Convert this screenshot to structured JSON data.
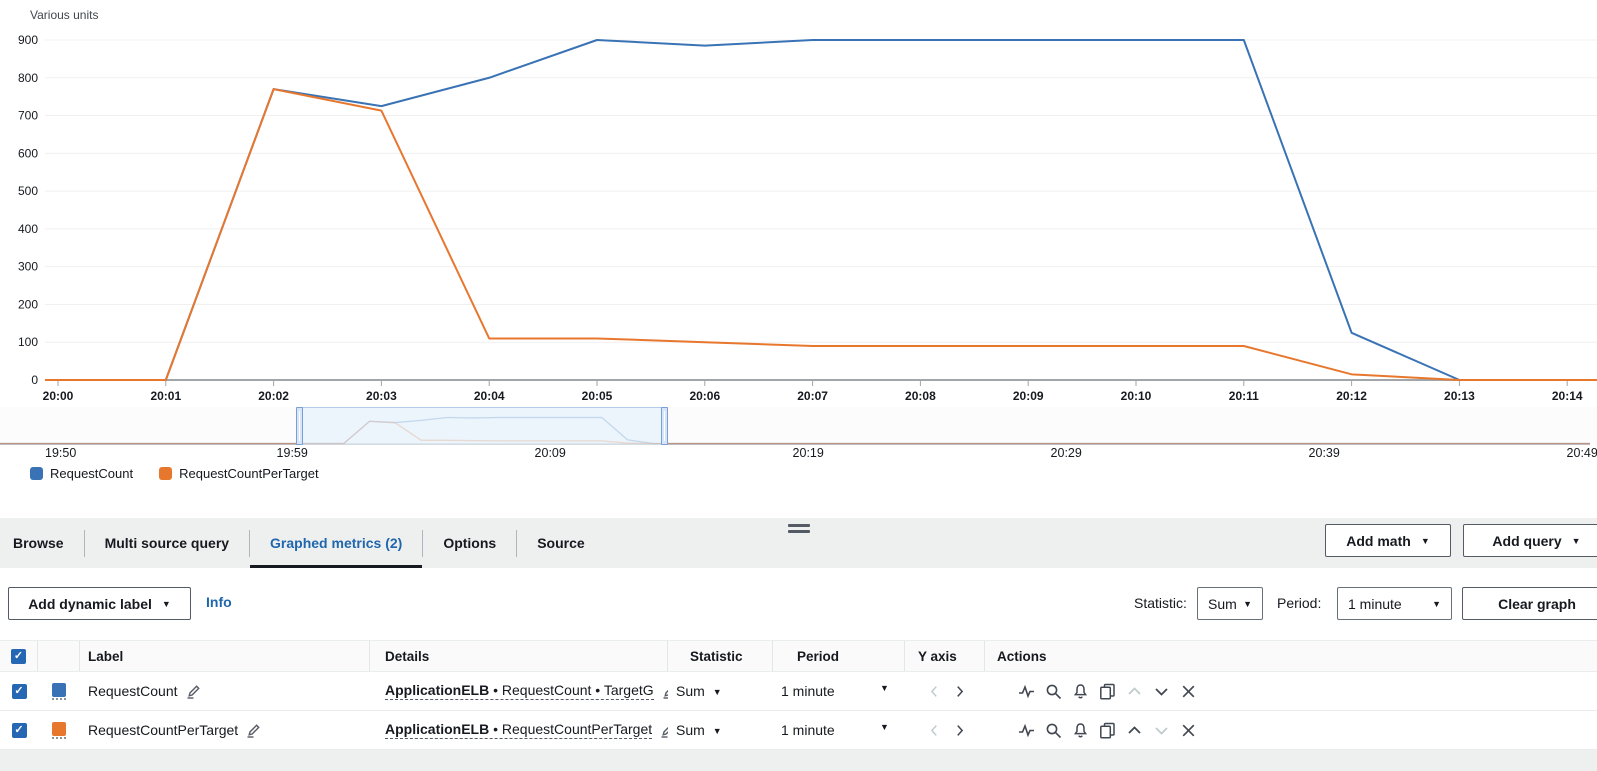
{
  "chart_data": {
    "type": "line",
    "y_axis_title": "Various units",
    "x": [
      "20:00",
      "20:01",
      "20:02",
      "20:03",
      "20:04",
      "20:05",
      "20:06",
      "20:07",
      "20:08",
      "20:09",
      "20:10",
      "20:11",
      "20:12",
      "20:13",
      "20:14"
    ],
    "y_ticks": [
      900,
      800,
      700,
      600,
      500,
      400,
      300,
      200,
      100,
      0
    ],
    "ylim": [
      0,
      900
    ],
    "grid": true,
    "legend_position": "bottom-left",
    "series": [
      {
        "name": "RequestCount",
        "color": "#3973b5",
        "values": [
          0,
          0,
          770,
          725,
          800,
          900,
          885,
          900,
          900,
          900,
          900,
          900,
          125,
          0,
          0
        ]
      },
      {
        "name": "RequestCountPerTarget",
        "color": "#e8772e",
        "values": [
          0,
          0,
          770,
          713,
          110,
          110,
          100,
          90,
          90,
          90,
          90,
          90,
          15,
          0,
          0
        ]
      }
    ]
  },
  "timeline": {
    "labels": [
      "19:50",
      "19:59",
      "20:09",
      "20:19",
      "20:29",
      "20:39",
      "20:49"
    ],
    "selection_start": "19:59",
    "selection_end": "20:13"
  },
  "tabs": {
    "items": [
      "Browse",
      "Multi source query",
      "Graphed metrics (2)",
      "Options",
      "Source"
    ],
    "active": "Graphed metrics (2)"
  },
  "buttons": {
    "add_math": "Add math",
    "add_query": "Add query",
    "add_dynamic_label": "Add dynamic label",
    "clear_graph": "Clear graph"
  },
  "toolbar": {
    "info": "Info",
    "statistic_label": "Statistic:",
    "statistic_value": "Sum",
    "period_label": "Period:",
    "period_value": "1 minute"
  },
  "table": {
    "headers": {
      "label": "Label",
      "details": "Details",
      "statistic": "Statistic",
      "period": "Period",
      "y_axis": "Y axis",
      "actions": "Actions"
    },
    "action_icons": [
      "line-chart",
      "search",
      "bell",
      "duplicate",
      "chevron-up",
      "chevron-down",
      "close"
    ],
    "rows": [
      {
        "checked": true,
        "color": "#3973b5",
        "label": "RequestCount",
        "details_prefix": "ApplicationELB",
        "details_rest": " • RequestCount • TargetG",
        "statistic": "Sum",
        "period": "1 minute",
        "disabled_action": "chevron-up"
      },
      {
        "checked": true,
        "color": "#e8772e",
        "label": "RequestCountPerTarget",
        "details_prefix": "ApplicationELB",
        "details_rest": " • RequestCountPerTarget",
        "statistic": "Sum",
        "period": "1 minute",
        "disabled_action": "chevron-down"
      }
    ]
  },
  "colors": {
    "accent_blue": "#1f66ad",
    "series_blue": "#3973b5",
    "series_orange": "#e8772e",
    "tab_underline": "#16191f"
  }
}
